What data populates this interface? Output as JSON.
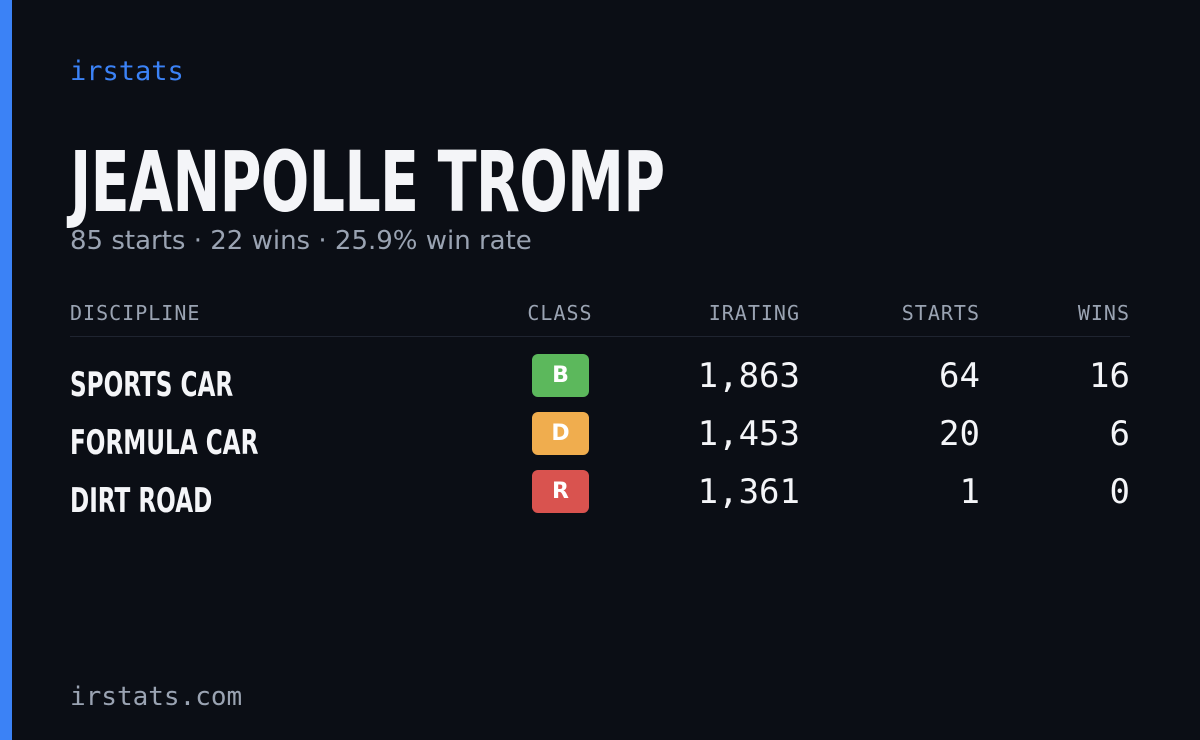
{
  "header": {
    "brand": "irstats"
  },
  "profile": {
    "name": "JEANPOLLE TROMP",
    "summary": "85 starts · 22 wins · 25.9% win rate"
  },
  "table": {
    "columns": [
      "DISCIPLINE",
      "CLASS",
      "IRATING",
      "STARTS",
      "WINS"
    ],
    "rows": [
      {
        "discipline": "SPORTS CAR",
        "class": "B",
        "class_color": "#5cb85c",
        "irating": "1,863",
        "starts": "64",
        "wins": "16"
      },
      {
        "discipline": "FORMULA CAR",
        "class": "D",
        "class_color": "#f0ad4e",
        "irating": "1,453",
        "starts": "20",
        "wins": "6"
      },
      {
        "discipline": "DIRT ROAD",
        "class": "R",
        "class_color": "#d9534f",
        "irating": "1,361",
        "starts": "1",
        "wins": "0"
      }
    ]
  },
  "footer": {
    "site": "irstats.com"
  }
}
